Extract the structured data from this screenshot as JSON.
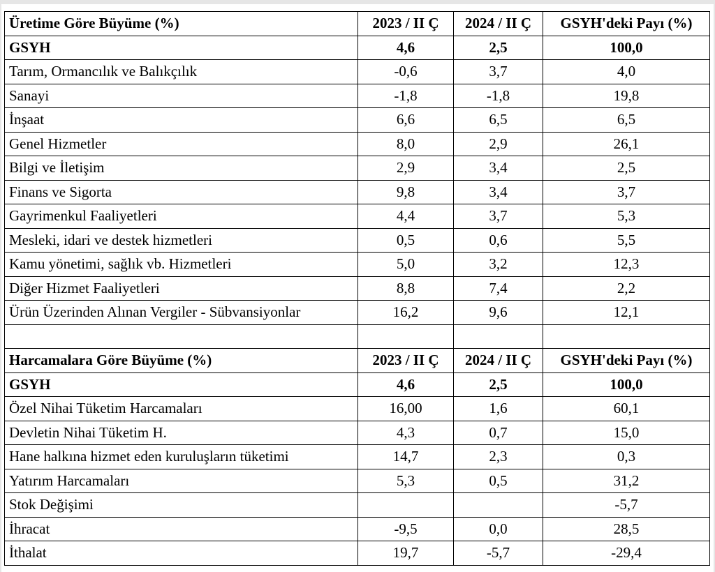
{
  "production": {
    "header": {
      "title": "Üretime Göre Büyüme (%)",
      "col1": "2023 / II Ç",
      "col2": "2024 / II Ç",
      "col3": "GSYH'deki Payı (%)"
    },
    "total": {
      "label": "GSYH",
      "v1": "4,6",
      "v2": "2,5",
      "v3": "100,0"
    },
    "rows": [
      {
        "label": "Tarım, Ormancılık ve Balıkçılık",
        "v1": "-0,6",
        "v2": "3,7",
        "v3": "4,0"
      },
      {
        "label": "Sanayi",
        "v1": "-1,8",
        "v2": "-1,8",
        "v3": "19,8"
      },
      {
        "label": "İnşaat",
        "v1": "6,6",
        "v2": "6,5",
        "v3": "6,5"
      },
      {
        "label": "Genel Hizmetler",
        "v1": "8,0",
        "v2": "2,9",
        "v3": "26,1"
      },
      {
        "label": "Bilgi ve İletişim",
        "v1": "2,9",
        "v2": "3,4",
        "v3": "2,5"
      },
      {
        "label": "Finans ve Sigorta",
        "v1": "9,8",
        "v2": "3,4",
        "v3": "3,7"
      },
      {
        "label": "Gayrimenkul Faaliyetleri",
        "v1": "4,4",
        "v2": "3,7",
        "v3": "5,3"
      },
      {
        "label": "Mesleki, idari ve destek hizmetleri",
        "v1": "0,5",
        "v2": "0,6",
        "v3": "5,5"
      },
      {
        "label": "Kamu yönetimi, sağlık vb. Hizmetleri",
        "v1": "5,0",
        "v2": "3,2",
        "v3": "12,3"
      },
      {
        "label": "Diğer Hizmet Faaliyetleri",
        "v1": "8,8",
        "v2": "7,4",
        "v3": "2,2"
      },
      {
        "label": "Ürün Üzerinden Alınan Vergiler - Sübvansiyonlar",
        "v1": "16,2",
        "v2": "9,6",
        "v3": "12,1"
      }
    ]
  },
  "expenditure": {
    "header": {
      "title": "Harcamalara Göre Büyüme (%)",
      "col1": "2023 / II Ç",
      "col2": "2024 / II Ç",
      "col3": "GSYH'deki Payı (%)"
    },
    "total": {
      "label": "GSYH",
      "v1": "4,6",
      "v2": "2,5",
      "v3": "100,0"
    },
    "rows": [
      {
        "label": "Özel Nihai Tüketim Harcamaları",
        "v1": "16,00",
        "v2": "1,6",
        "v3": "60,1"
      },
      {
        "label": "Devletin Nihai Tüketim H.",
        "v1": "4,3",
        "v2": "0,7",
        "v3": "15,0"
      },
      {
        "label": "Hane halkına hizmet eden kuruluşların tüketimi",
        "v1": "14,7",
        "v2": "2,3",
        "v3": "0,3"
      },
      {
        "label": "Yatırım Harcamaları",
        "v1": "5,3",
        "v2": "0,5",
        "v3": "31,2"
      },
      {
        "label": "Stok Değişimi",
        "v1": "",
        "v2": "",
        "v3": "-5,7"
      },
      {
        "label": "İhracat",
        "v1": "-9,5",
        "v2": "0,0",
        "v3": "28,5"
      },
      {
        "label": "İthalat",
        "v1": "19,7",
        "v2": "-5,7",
        "v3": "-29,4"
      }
    ]
  }
}
